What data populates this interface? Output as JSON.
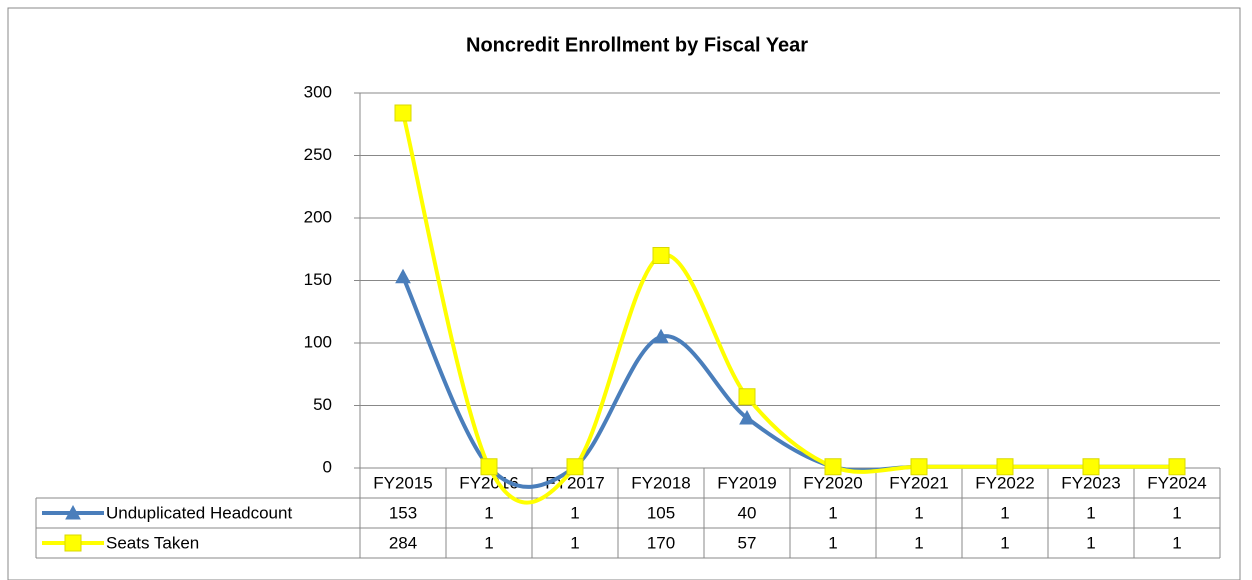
{
  "chart_data": {
    "type": "line",
    "title": "Noncredit Enrollment by Fiscal Year",
    "categories": [
      "FY2015",
      "FY2016",
      "FY2017",
      "FY2018",
      "FY2019",
      "FY2020",
      "FY2021",
      "FY2022",
      "FY2023",
      "FY2024"
    ],
    "series": [
      {
        "name": "Unduplicated Headcount",
        "color": "#4a7ebb",
        "marker": "triangle",
        "values": [
          153,
          1,
          1,
          105,
          40,
          1,
          1,
          1,
          1,
          1
        ]
      },
      {
        "name": "Seats Taken",
        "color": "#ffff00",
        "marker": "square",
        "values": [
          284,
          1,
          1,
          170,
          57,
          1,
          1,
          1,
          1,
          1
        ]
      }
    ],
    "ylim": [
      0,
      300
    ],
    "yticks": [
      0,
      50,
      100,
      150,
      200,
      250,
      300
    ],
    "grid": true,
    "smooth": true,
    "data_table": true
  }
}
